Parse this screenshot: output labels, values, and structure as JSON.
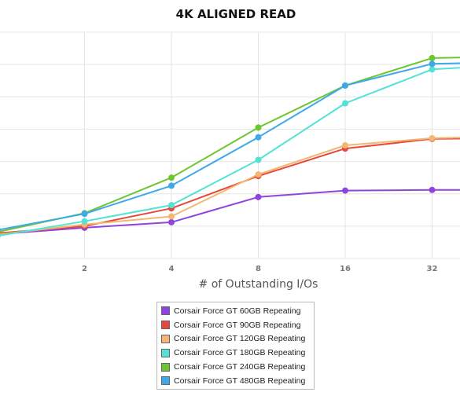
{
  "chart_data": {
    "type": "line",
    "title": "4K ALIGNED READ",
    "xlabel": "# of Outstanding I/Os",
    "ylabel": "",
    "x_scale": "log2",
    "x": [
      1,
      2,
      4,
      8,
      16,
      32,
      64
    ],
    "xticks": [
      "2",
      "4",
      "8",
      "16",
      "32"
    ],
    "ylim": [
      0,
      7
    ],
    "grid": true,
    "legend_position": "bottom",
    "series": [
      {
        "name": "Corsair Force GT 60GB Repeating",
        "color": "#8f44e0",
        "values": [
          0.75,
          0.95,
          1.12,
          1.9,
          2.1,
          2.12,
          2.12
        ]
      },
      {
        "name": "Corsair Force GT 90GB Repeating",
        "color": "#e8483b",
        "values": [
          0.78,
          1.0,
          1.55,
          2.55,
          3.4,
          3.7,
          3.72
        ]
      },
      {
        "name": "Corsair Force GT 120GB Repeating",
        "color": "#f0b872",
        "values": [
          0.74,
          1.05,
          1.3,
          2.6,
          3.5,
          3.72,
          3.78
        ]
      },
      {
        "name": "Corsair Force GT 180GB Repeating",
        "color": "#52e3d6",
        "values": [
          0.7,
          1.15,
          1.65,
          3.05,
          4.8,
          5.85,
          6.0
        ]
      },
      {
        "name": "Corsair Force GT 240GB Repeating",
        "color": "#6cc62e",
        "values": [
          0.82,
          1.4,
          2.5,
          4.05,
          5.35,
          6.2,
          6.25
        ]
      },
      {
        "name": "Corsair Force GT 480GB Repeating",
        "color": "#3fa8e8",
        "values": [
          0.88,
          1.38,
          2.25,
          3.75,
          5.35,
          6.02,
          6.08
        ]
      }
    ]
  }
}
